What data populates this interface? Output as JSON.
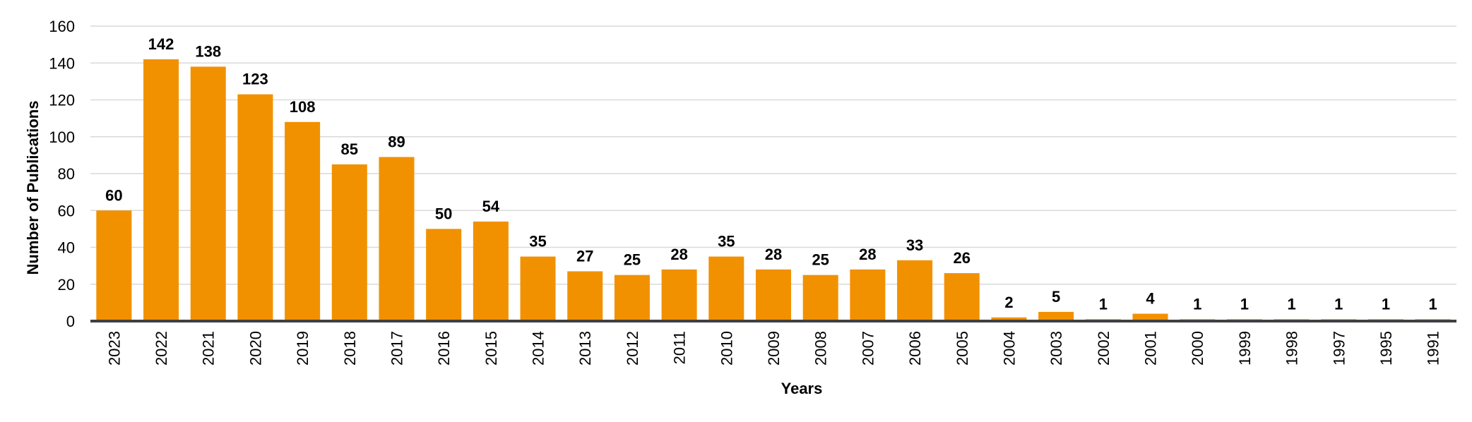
{
  "chart_data": {
    "type": "bar",
    "xlabel": "Years",
    "ylabel": "Number of Publications",
    "ylim": [
      0,
      160
    ],
    "yticks": [
      0,
      20,
      40,
      60,
      80,
      100,
      120,
      140,
      160
    ],
    "grid": true,
    "bar_color": "#F29100",
    "categories": [
      "2023",
      "2022",
      "2021",
      "2020",
      "2019",
      "2018",
      "2017",
      "2016",
      "2015",
      "2014",
      "2013",
      "2012",
      "2011",
      "2010",
      "2009",
      "2008",
      "2007",
      "2006",
      "2005",
      "2004",
      "2003",
      "2002",
      "2001",
      "2000",
      "1999",
      "1998",
      "1997",
      "1995",
      "1991"
    ],
    "values": [
      60,
      142,
      138,
      123,
      108,
      85,
      89,
      50,
      54,
      35,
      27,
      25,
      28,
      35,
      28,
      25,
      28,
      33,
      26,
      2,
      5,
      1,
      4,
      1,
      1,
      1,
      1,
      1,
      1
    ]
  }
}
